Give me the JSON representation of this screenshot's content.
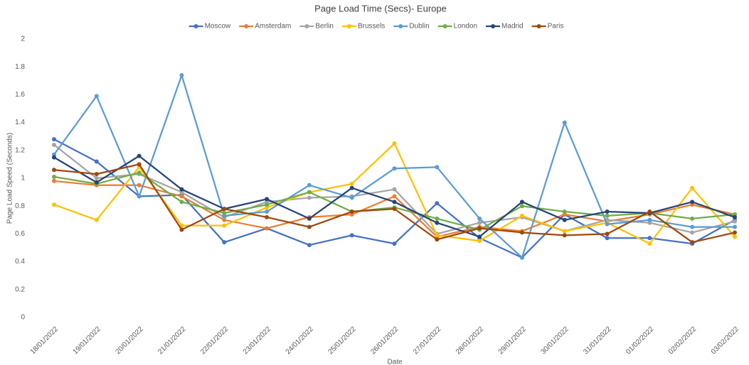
{
  "chart_data": {
    "type": "line",
    "title": "Page Load Time (Secs)- Europe",
    "x_label": "Date",
    "y_label": "Page Load Speed (Seconds)",
    "categories": [
      "18/01/2022",
      "19/01/2022",
      "20/01/2022",
      "21/01/2022",
      "22/01/2022",
      "23/01/2022",
      "24/01/2022",
      "25/01/2022",
      "26/01/2022",
      "27/01/2022",
      "28/01/2022",
      "29/01/2022",
      "30/01/2022",
      "31/01/2022",
      "01/02/2022",
      "02/02/2022",
      "03/02/2022"
    ],
    "series": [
      {
        "name": "Moscow",
        "color": "#4472c4",
        "values": [
          1.28,
          1.12,
          0.87,
          0.88,
          0.54,
          0.64,
          0.52,
          0.59,
          0.53,
          0.82,
          0.57,
          0.43,
          0.74,
          0.57,
          0.57,
          0.53,
          0.7
        ]
      },
      {
        "name": "Amsterdam",
        "color": "#ed7d31",
        "values": [
          0.98,
          0.95,
          0.95,
          0.87,
          0.7,
          0.64,
          0.72,
          0.74,
          0.87,
          0.58,
          0.65,
          0.62,
          0.74,
          0.69,
          0.74,
          0.81,
          0.74
        ]
      },
      {
        "name": "Berlin",
        "color": "#a5a5a5",
        "values": [
          1.24,
          1.0,
          1.03,
          0.9,
          0.72,
          0.83,
          0.86,
          0.87,
          0.92,
          0.6,
          0.68,
          0.72,
          0.62,
          0.7,
          0.68,
          0.61,
          0.69
        ]
      },
      {
        "name": "Brussels",
        "color": "#ffc000",
        "values": [
          0.81,
          0.7,
          1.08,
          0.66,
          0.66,
          0.79,
          0.9,
          0.96,
          1.25,
          0.59,
          0.55,
          0.73,
          0.62,
          0.68,
          0.53,
          0.93,
          0.58
        ]
      },
      {
        "name": "Dublin",
        "color": "#5b9bd5",
        "values": [
          1.17,
          1.59,
          0.87,
          1.74,
          0.73,
          0.76,
          0.95,
          0.86,
          1.07,
          1.08,
          0.71,
          0.43,
          1.4,
          0.67,
          0.7,
          0.65,
          0.65
        ]
      },
      {
        "name": "London",
        "color": "#70ad47",
        "values": [
          1.01,
          0.96,
          1.04,
          0.83,
          0.75,
          0.81,
          0.9,
          0.76,
          0.79,
          0.71,
          0.63,
          0.8,
          0.76,
          0.73,
          0.75,
          0.71,
          0.74
        ]
      },
      {
        "name": "Madrid",
        "color": "#264478",
        "values": [
          1.15,
          0.97,
          1.16,
          0.92,
          0.78,
          0.85,
          0.71,
          0.93,
          0.83,
          0.68,
          0.58,
          0.83,
          0.7,
          0.76,
          0.75,
          0.83,
          0.72
        ]
      },
      {
        "name": "Paris",
        "color": "#9e480e",
        "values": [
          1.06,
          1.03,
          1.1,
          0.63,
          0.78,
          0.72,
          0.65,
          0.76,
          0.78,
          0.56,
          0.64,
          0.61,
          0.59,
          0.6,
          0.76,
          0.54,
          0.61
        ]
      }
    ],
    "ylim": [
      0,
      2
    ],
    "yticks": [
      0,
      0.2,
      0.4,
      0.6,
      0.8,
      1,
      1.2,
      1.4,
      1.6,
      1.8,
      2
    ],
    "legend": "top",
    "grid": false
  }
}
